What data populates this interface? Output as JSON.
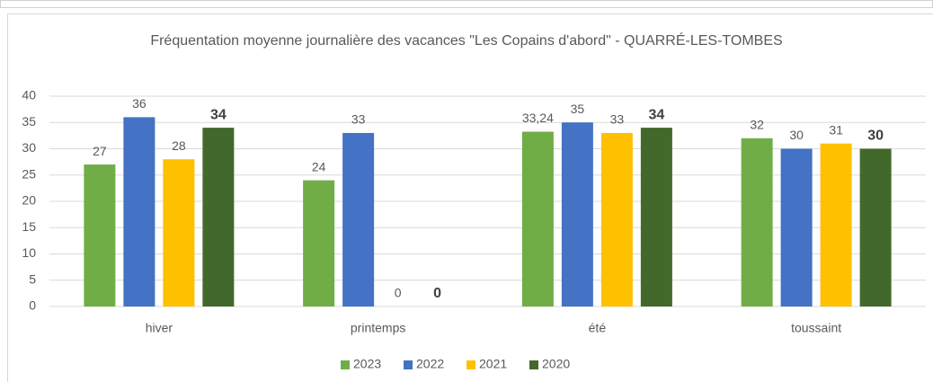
{
  "chart_data": {
    "type": "bar",
    "title": "Fréquentation moyenne journalière des vacances \"Les Copains d'abord\" - QUARRÉ-LES-TOMBES",
    "categories": [
      "hiver",
      "printemps",
      "été",
      "toussaint"
    ],
    "series": [
      {
        "name": "2023",
        "color": "#70ad47",
        "values": [
          27,
          24,
          33.24,
          32
        ],
        "value_labels": [
          "27",
          "24",
          "33,24",
          "32"
        ]
      },
      {
        "name": "2022",
        "color": "#4472c4",
        "values": [
          36,
          33,
          35,
          30
        ]
      },
      {
        "name": "2021",
        "color": "#ffc000",
        "values": [
          28,
          0,
          33,
          31
        ]
      },
      {
        "name": "2020",
        "color": "#43682b",
        "values": [
          34,
          0,
          34,
          30
        ]
      }
    ],
    "ylim": [
      0,
      40
    ],
    "yticks": [
      0,
      5,
      10,
      15,
      20,
      25,
      30,
      35,
      40
    ],
    "grid": true,
    "legend": "bottom"
  }
}
